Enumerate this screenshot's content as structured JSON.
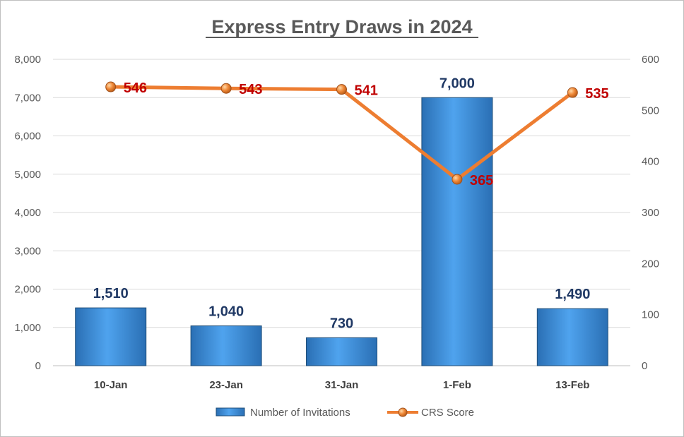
{
  "chart_data": {
    "type": "bar",
    "title": "Express Entry Draws in 2024",
    "categories": [
      "10-Jan",
      "23-Jan",
      "31-Jan",
      "1-Feb",
      "13-Feb"
    ],
    "series": [
      {
        "name": "Number of Invitations",
        "type": "bar",
        "axis": "left",
        "values": [
          1510,
          1040,
          730,
          7000,
          1490
        ],
        "labels": [
          "1,510",
          "1,040",
          "730",
          "7,000",
          "1,490"
        ],
        "color": "#3d8fd6"
      },
      {
        "name": "CRS Score",
        "type": "line",
        "axis": "right",
        "values": [
          546,
          543,
          541,
          365,
          535
        ],
        "labels": [
          "546",
          "543",
          "541",
          "365",
          "535"
        ],
        "color": "#ed7d31"
      }
    ],
    "y_left": {
      "ylim": [
        0,
        8000
      ],
      "ticks": [
        "0",
        "1,000",
        "2,000",
        "3,000",
        "4,000",
        "5,000",
        "6,000",
        "7,000",
        "8,000"
      ]
    },
    "y_right": {
      "ylim": [
        0,
        600
      ],
      "ticks": [
        "0",
        "100",
        "200",
        "300",
        "400",
        "500",
        "600"
      ]
    },
    "grid": true,
    "legend_position": "bottom"
  }
}
